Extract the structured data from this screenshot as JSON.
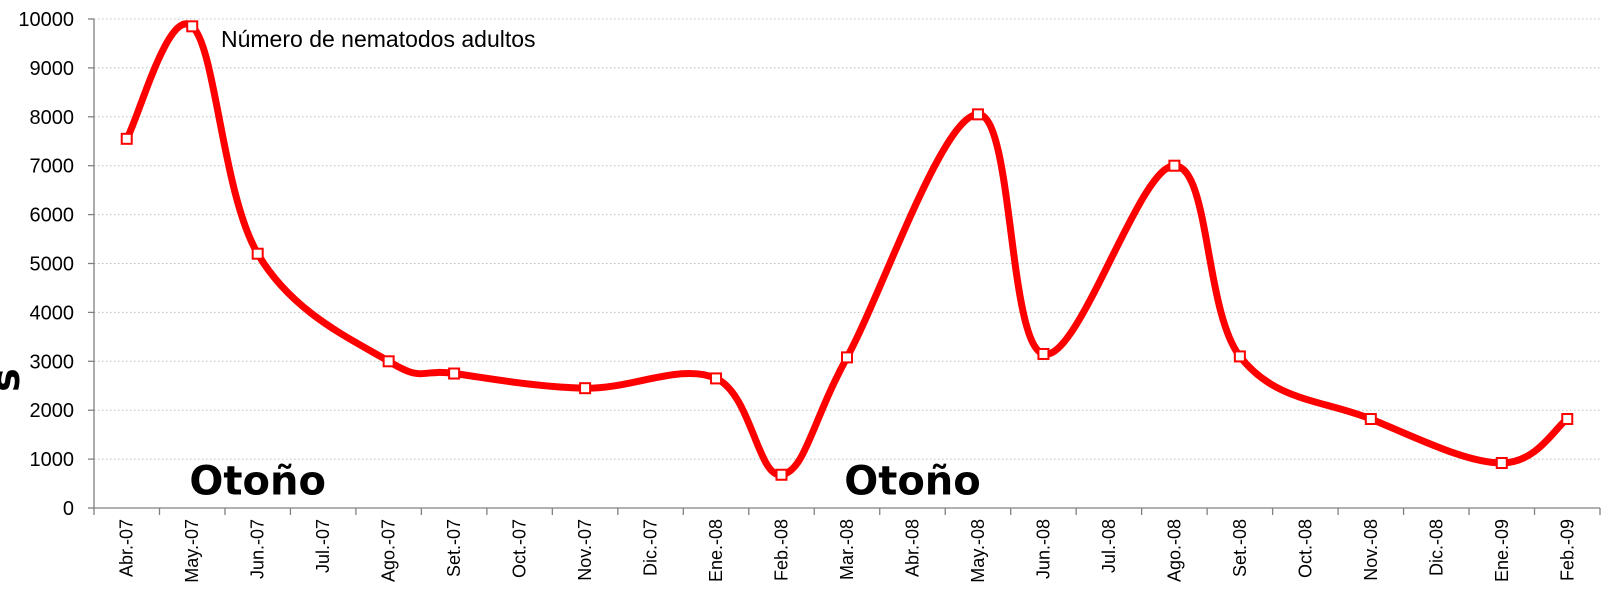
{
  "chart_data": {
    "type": "line",
    "ylim": [
      0,
      10000
    ],
    "yticks": [
      "0",
      "1000",
      "2000",
      "3000",
      "4000",
      "5000",
      "6000",
      "7000",
      "8000",
      "9000",
      "10000"
    ],
    "categories": [
      "Abr.-07",
      "May.-07",
      "Jun.-07",
      "Jul.-07",
      "Ago.-07",
      "Set.-07",
      "Oct.-07",
      "Nov.-07",
      "Dic.-07",
      "Ene.-08",
      "Feb.-08",
      "Mar.-08",
      "Abr.-08",
      "May.-08",
      "Jun.-08",
      "Jul.-08",
      "Ago.-08",
      "Set.-08",
      "Oct.-08",
      "Nov.-08",
      "Dic.-08",
      "Ene.-09",
      "Feb.-09"
    ],
    "grid": true,
    "series": [
      {
        "name": "Número de nematodos adultos",
        "color": "#ff0000",
        "points": [
          {
            "x": "Abr.-07",
            "y": 7550
          },
          {
            "x": "May.-07",
            "y": 9850
          },
          {
            "x": "Jun.-07",
            "y": 5200
          },
          {
            "x": "Ago.-07",
            "y": 3000
          },
          {
            "x": "Set.-07",
            "y": 2750
          },
          {
            "x": "Nov.-07",
            "y": 2450
          },
          {
            "x": "Ene.-08",
            "y": 2650
          },
          {
            "x": "Feb.-08",
            "y": 680
          },
          {
            "x": "Mar.-08",
            "y": 3080
          },
          {
            "x": "May.-08",
            "y": 8050
          },
          {
            "x": "Jun.-08",
            "y": 3150
          },
          {
            "x": "Ago.-08",
            "y": 7000
          },
          {
            "x": "Set.-08",
            "y": 3100
          },
          {
            "x": "Nov.-08",
            "y": 1820
          },
          {
            "x": "Ene.-09",
            "y": 920
          },
          {
            "x": "Feb.-09",
            "y": 1820
          }
        ]
      }
    ],
    "annotations": [
      {
        "text": "Otoño",
        "x": "Jun.-07",
        "y": 560
      },
      {
        "text": "Otoño",
        "x": "Abr.-08",
        "y": 560
      }
    ],
    "ylabel_fragment": "s"
  }
}
